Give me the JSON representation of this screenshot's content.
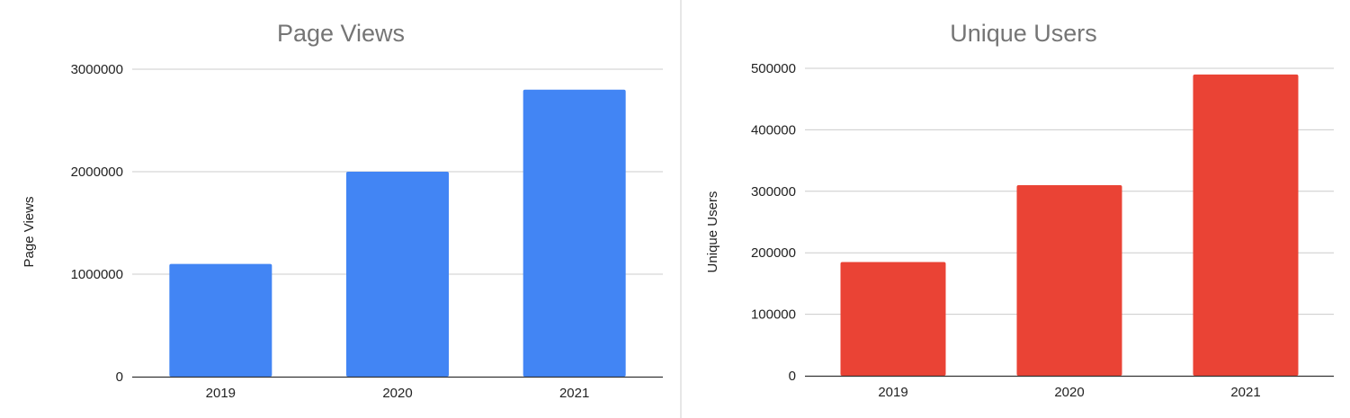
{
  "chart_data": [
    {
      "type": "bar",
      "title": "Page Views",
      "xlabel": "",
      "ylabel": "Page Views",
      "categories": [
        "2019",
        "2020",
        "2021"
      ],
      "values": [
        1100000,
        2000000,
        2800000
      ],
      "ylim": [
        0,
        3000000
      ],
      "yticks": [
        "0",
        "1000000",
        "2000000",
        "3000000"
      ],
      "grid": true,
      "legend": "none",
      "color": "#4285f4"
    },
    {
      "type": "bar",
      "title": "Unique Users",
      "xlabel": "",
      "ylabel": "Unique Users",
      "categories": [
        "2019",
        "2020",
        "2021"
      ],
      "values": [
        185000,
        310000,
        490000
      ],
      "ylim": [
        0,
        500000
      ],
      "yticks": [
        "0",
        "100000",
        "200000",
        "300000",
        "400000",
        "500000"
      ],
      "grid": true,
      "legend": "none",
      "color": "#ea4335"
    }
  ]
}
